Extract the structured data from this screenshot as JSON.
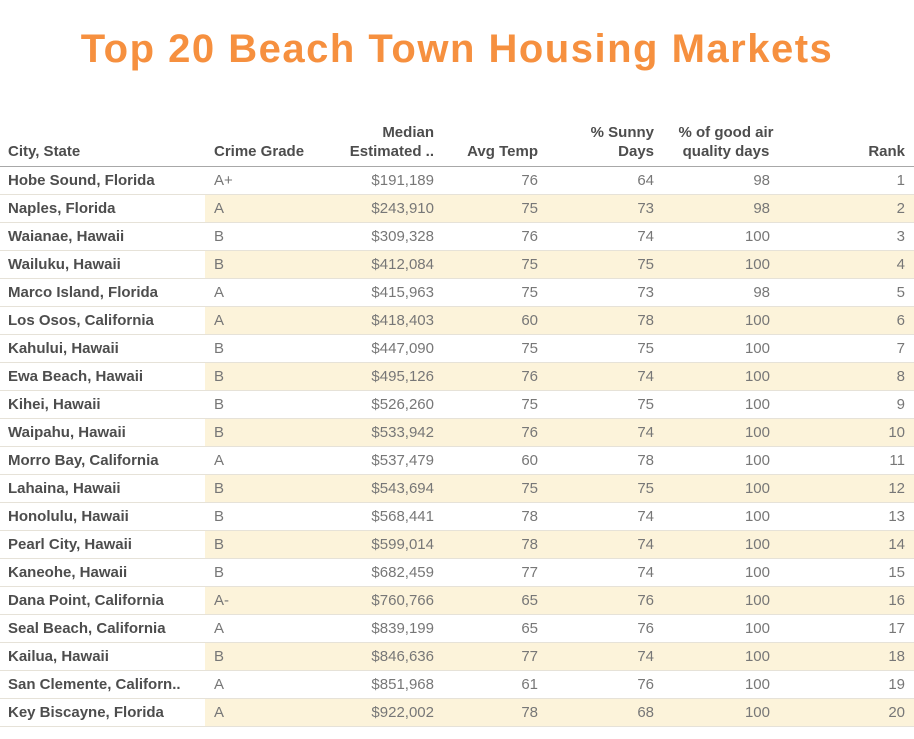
{
  "title": "Top 20 Beach Town Housing Markets",
  "colors": {
    "title_orange": "#F6903F",
    "band_cream": "#FCF3DA",
    "header_text": "#4D4D4D",
    "cell_text": "#777777",
    "row_border": "#E6E2D8",
    "header_border": "#A8A8A8"
  },
  "chart_data": {
    "type": "table",
    "title": "Top 20 Beach Town Housing Markets",
    "banding": {
      "pattern": "every second row, starting with row 2",
      "color": "#FCF3DA",
      "starts_at_column": "Crime Grade"
    },
    "columns": [
      {
        "id": "city",
        "lines": [
          "City, State"
        ],
        "header_align": "left",
        "cell_align": "left"
      },
      {
        "id": "crime",
        "lines": [
          "Crime Grade"
        ],
        "header_align": "left",
        "cell_align": "left"
      },
      {
        "id": "median",
        "lines": [
          "Median",
          "Estimated .."
        ],
        "header_align": "right",
        "cell_align": "right"
      },
      {
        "id": "avgtemp",
        "lines": [
          "Avg Temp"
        ],
        "header_align": "right",
        "cell_align": "right"
      },
      {
        "id": "sunny",
        "lines": [
          "% Sunny",
          "Days"
        ],
        "header_align": "right",
        "cell_align": "right"
      },
      {
        "id": "air",
        "lines": [
          "% of good air",
          "quality days"
        ],
        "header_align": "center",
        "cell_align": "right"
      },
      {
        "id": "rank",
        "lines": [
          "Rank"
        ],
        "header_align": "right",
        "cell_align": "right"
      }
    ],
    "rows": [
      [
        "Hobe Sound, Florida",
        "A+",
        "$191,189",
        "76",
        "64",
        "98",
        "1"
      ],
      [
        "Naples, Florida",
        "A",
        "$243,910",
        "75",
        "73",
        "98",
        "2"
      ],
      [
        "Waianae, Hawaii",
        "B",
        "$309,328",
        "76",
        "74",
        "100",
        "3"
      ],
      [
        "Wailuku, Hawaii",
        "B",
        "$412,084",
        "75",
        "75",
        "100",
        "4"
      ],
      [
        "Marco Island, Florida",
        "A",
        "$415,963",
        "75",
        "73",
        "98",
        "5"
      ],
      [
        "Los Osos, California",
        "A",
        "$418,403",
        "60",
        "78",
        "100",
        "6"
      ],
      [
        "Kahului, Hawaii",
        "B",
        "$447,090",
        "75",
        "75",
        "100",
        "7"
      ],
      [
        "Ewa Beach, Hawaii",
        "B",
        "$495,126",
        "76",
        "74",
        "100",
        "8"
      ],
      [
        "Kihei, Hawaii",
        "B",
        "$526,260",
        "75",
        "75",
        "100",
        "9"
      ],
      [
        "Waipahu, Hawaii",
        "B",
        "$533,942",
        "76",
        "74",
        "100",
        "10"
      ],
      [
        "Morro Bay, California",
        "A",
        "$537,479",
        "60",
        "78",
        "100",
        "11"
      ],
      [
        "Lahaina, Hawaii",
        "B",
        "$543,694",
        "75",
        "75",
        "100",
        "12"
      ],
      [
        "Honolulu, Hawaii",
        "B",
        "$568,441",
        "78",
        "74",
        "100",
        "13"
      ],
      [
        "Pearl City, Hawaii",
        "B",
        "$599,014",
        "78",
        "74",
        "100",
        "14"
      ],
      [
        "Kaneohe, Hawaii",
        "B",
        "$682,459",
        "77",
        "74",
        "100",
        "15"
      ],
      [
        "Dana Point, California",
        "A-",
        "$760,766",
        "65",
        "76",
        "100",
        "16"
      ],
      [
        "Seal Beach, California",
        "A",
        "$839,199",
        "65",
        "76",
        "100",
        "17"
      ],
      [
        "Kailua, Hawaii",
        "B",
        "$846,636",
        "77",
        "74",
        "100",
        "18"
      ],
      [
        "San Clemente, Californ..",
        "A",
        "$851,968",
        "61",
        "76",
        "100",
        "19"
      ],
      [
        "Key Biscayne, Florida",
        "A",
        "$922,002",
        "78",
        "68",
        "100",
        "20"
      ]
    ]
  }
}
